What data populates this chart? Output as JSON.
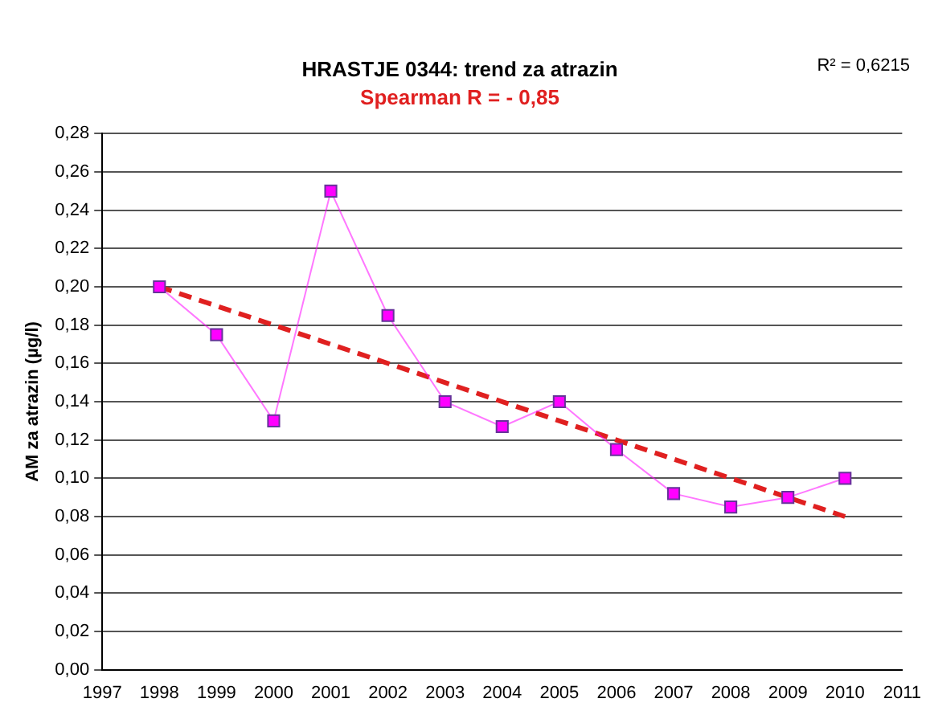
{
  "chart_data": {
    "type": "line",
    "title": "HRASTJE 0344: trend za atrazin",
    "subtitle": "Spearman R = - 0,85",
    "ylabel": "AM za atrazin (µg/l)",
    "annotations": [
      "R² = 0,6215"
    ],
    "x": [
      1998,
      1999,
      2000,
      2001,
      2002,
      2003,
      2004,
      2005,
      2006,
      2007,
      2008,
      2009,
      2010
    ],
    "series": [
      {
        "color": "#ff00ff",
        "marker": "square",
        "line_style": "solid",
        "values": [
          0.2,
          0.175,
          0.13,
          0.25,
          0.185,
          0.14,
          0.127,
          0.14,
          0.115,
          0.092,
          0.085,
          0.09,
          0.1
        ]
      },
      {
        "type": "line",
        "color": "#e02020",
        "marker": "none",
        "line_style": "dashed",
        "x": [
          1998,
          2010
        ],
        "values": [
          0.2,
          0.08
        ]
      }
    ],
    "xlim": [
      1997,
      2011
    ],
    "xticks": [
      1997,
      1998,
      1999,
      2000,
      2001,
      2002,
      2003,
      2004,
      2005,
      2006,
      2007,
      2008,
      2009,
      2010,
      2011
    ],
    "ylim": [
      0,
      0.28
    ],
    "yticks": [
      {
        "value": 0,
        "label": "0,00"
      },
      {
        "value": 0.02,
        "label": "0,02"
      },
      {
        "value": 0.04,
        "label": "0,04"
      },
      {
        "value": 0.06,
        "label": "0,06"
      },
      {
        "value": 0.08,
        "label": "0,08"
      },
      {
        "value": 0.1,
        "label": "0,10"
      },
      {
        "value": 0.12,
        "label": "0,12"
      },
      {
        "value": 0.14,
        "label": "0,14"
      },
      {
        "value": 0.16,
        "label": "0,16"
      },
      {
        "value": 0.18,
        "label": "0,18"
      },
      {
        "value": 0.2,
        "label": "0,20"
      },
      {
        "value": 0.22,
        "label": "0,22"
      },
      {
        "value": 0.24,
        "label": "0,24"
      },
      {
        "value": 0.26,
        "label": "0,26"
      },
      {
        "value": 0.28,
        "label": "0,28"
      }
    ],
    "grid": "y",
    "legend": false
  }
}
